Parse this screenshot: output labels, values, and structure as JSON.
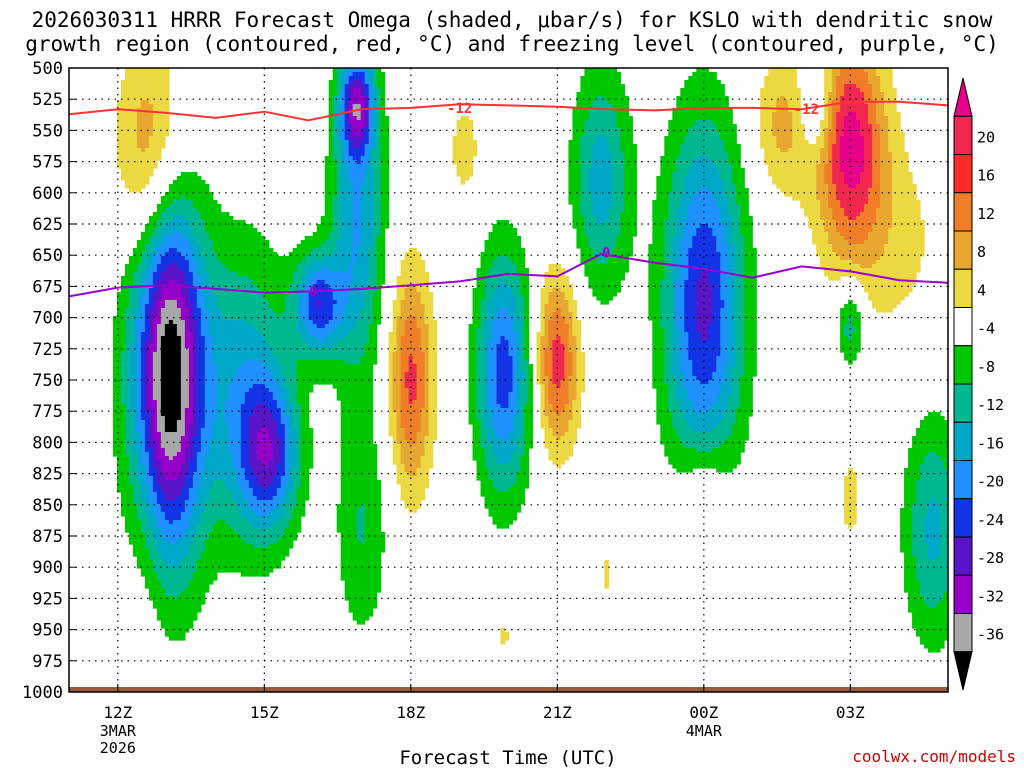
{
  "title_line1": "2026030311 HRRR Forecast Omega (shaded, μbar/s) for KSLO with dendritic snow",
  "title_line2": "growth region (contoured, red, °C) and freezing level (contoured, purple, °C)",
  "credit": "coolwx.com/models",
  "chart_data": {
    "type": "heatmap",
    "title": "2026030311 HRRR Forecast Omega (shaded, μbar/s) for KSLO with dendritic snow growth region (contoured, red, °C) and freezing level (contoured, purple, °C)",
    "xlabel": "Forecast Time (UTC)",
    "ylabel": "",
    "xlim": [
      11.0,
      29.0
    ],
    "ylim": [
      1000,
      500
    ],
    "y_ticks": [
      500,
      525,
      550,
      575,
      600,
      625,
      650,
      675,
      700,
      725,
      750,
      775,
      800,
      825,
      850,
      875,
      900,
      925,
      950,
      975,
      1000
    ],
    "x_ticks": [
      {
        "x": 12,
        "label": "12Z",
        "sub1": "3MAR",
        "sub2": "2026"
      },
      {
        "x": 15,
        "label": "15Z",
        "sub1": "",
        "sub2": ""
      },
      {
        "x": 18,
        "label": "18Z",
        "sub1": "",
        "sub2": ""
      },
      {
        "x": 21,
        "label": "21Z",
        "sub1": "",
        "sub2": ""
      },
      {
        "x": 24,
        "label": "00Z",
        "sub1": "4MAR",
        "sub2": ""
      },
      {
        "x": 27,
        "label": "03Z",
        "sub1": "",
        "sub2": ""
      }
    ],
    "colorbar": {
      "labels": [
        "20",
        "16",
        "12",
        "8",
        "4",
        "-4",
        "-8",
        "-12",
        "-16",
        "-20",
        "-24",
        "-28",
        "-32",
        "-36"
      ],
      "colors": [
        "#e8008a",
        "#f02850",
        "#ff2a2a",
        "#f07e28",
        "#e8a830",
        "#ecd840",
        "#ffffff",
        "#00c800",
        "#00b890",
        "#00a8c8",
        "#1e90ff",
        "#1432e6",
        "#5a14c8",
        "#9600c8",
        "#a8a8a8",
        "#000000"
      ]
    },
    "omega_features": [
      {
        "x": 13.0,
        "p": 745,
        "rx": 0.75,
        "rp": 145,
        "peak": -42
      },
      {
        "x": 14.6,
        "p": 760,
        "rx": 0.9,
        "rp": 120,
        "peak": -14
      },
      {
        "x": 15.1,
        "p": 810,
        "rx": 0.6,
        "rp": 60,
        "peak": -20
      },
      {
        "x": 16.1,
        "p": 690,
        "rx": 0.5,
        "rp": 40,
        "peak": -22
      },
      {
        "x": 16.9,
        "p": 625,
        "rx": 0.55,
        "rp": 120,
        "peak": -16
      },
      {
        "x": 16.9,
        "p": 530,
        "rx": 0.35,
        "rp": 40,
        "peak": -24
      },
      {
        "x": 17.0,
        "p": 870,
        "rx": 0.55,
        "rp": 90,
        "peak": -8
      },
      {
        "x": 12.7,
        "p": 570,
        "rx": 0.75,
        "rp": 90,
        "peak": 13
      },
      {
        "x": 12.6,
        "p": 780,
        "rx": 0.45,
        "rp": 200,
        "peak": 6
      },
      {
        "x": 18.0,
        "p": 750,
        "rx": 0.45,
        "rp": 90,
        "peak": 17
      },
      {
        "x": 19.9,
        "p": 745,
        "rx": 0.55,
        "rp": 95,
        "peak": -22
      },
      {
        "x": 21.0,
        "p": 735,
        "rx": 0.45,
        "rp": 70,
        "peak": 18
      },
      {
        "x": 19.1,
        "p": 565,
        "rx": 0.35,
        "rp": 45,
        "peak": 6
      },
      {
        "x": 21.9,
        "p": 590,
        "rx": 0.6,
        "rp": 90,
        "peak": -14
      },
      {
        "x": 24.0,
        "p": 690,
        "rx": 0.8,
        "rp": 140,
        "peak": -25
      },
      {
        "x": 24.0,
        "p": 845,
        "rx": 0.55,
        "rp": 50,
        "peak": 8
      },
      {
        "x": 25.6,
        "p": 545,
        "rx": 0.6,
        "rp": 60,
        "peak": 9
      },
      {
        "x": 26.3,
        "p": 530,
        "rx": 0.35,
        "rp": 40,
        "peak": -10
      },
      {
        "x": 27.0,
        "p": 560,
        "rx": 0.7,
        "rp": 90,
        "peak": 21
      },
      {
        "x": 27.9,
        "p": 640,
        "rx": 1.2,
        "rp": 90,
        "peak": 5
      },
      {
        "x": 27.0,
        "p": 705,
        "rx": 0.3,
        "rp": 35,
        "peak": -12
      },
      {
        "x": 28.7,
        "p": 870,
        "rx": 0.6,
        "rp": 90,
        "peak": -13
      },
      {
        "x": 27.0,
        "p": 845,
        "rx": 0.3,
        "rp": 50,
        "peak": 5
      },
      {
        "x": 22.0,
        "p": 905,
        "rx": 0.15,
        "rp": 25,
        "peak": 5
      },
      {
        "x": 19.9,
        "p": 955,
        "rx": 0.15,
        "rp": 15,
        "peak": 5
      }
    ],
    "series": [
      {
        "name": "dendritic -12C",
        "color": "#ff3333",
        "label": "-12",
        "label_at": [
          [
            19.0,
            532
          ],
          [
            26.1,
            533
          ]
        ],
        "x": [
          11.0,
          12.0,
          13.0,
          14.0,
          15.0,
          15.9,
          17.0,
          18.0,
          19.0,
          20.0,
          21.0,
          22.0,
          23.0,
          24.0,
          25.0,
          26.0,
          27.0,
          28.0,
          29.0
        ],
        "p": [
          537,
          533,
          536,
          540,
          535,
          542,
          533,
          532,
          529,
          530,
          531,
          533,
          534,
          532,
          532,
          533,
          527,
          527,
          530
        ]
      },
      {
        "name": "freezing level 0C",
        "color": "#9900cc",
        "label": "0",
        "label_at": [
          [
            16.0,
            679
          ],
          [
            22.0,
            648
          ]
        ],
        "x": [
          11.0,
          12.0,
          13.0,
          14.0,
          15.0,
          16.0,
          17.0,
          18.0,
          19.0,
          20.0,
          21.0,
          21.9,
          23.0,
          24.0,
          25.0,
          26.0,
          27.0,
          28.0,
          29.0
        ],
        "p": [
          683,
          676,
          674,
          677,
          680,
          679,
          677,
          674,
          671,
          665,
          667,
          649,
          656,
          661,
          668,
          659,
          663,
          670,
          672
        ]
      }
    ]
  }
}
